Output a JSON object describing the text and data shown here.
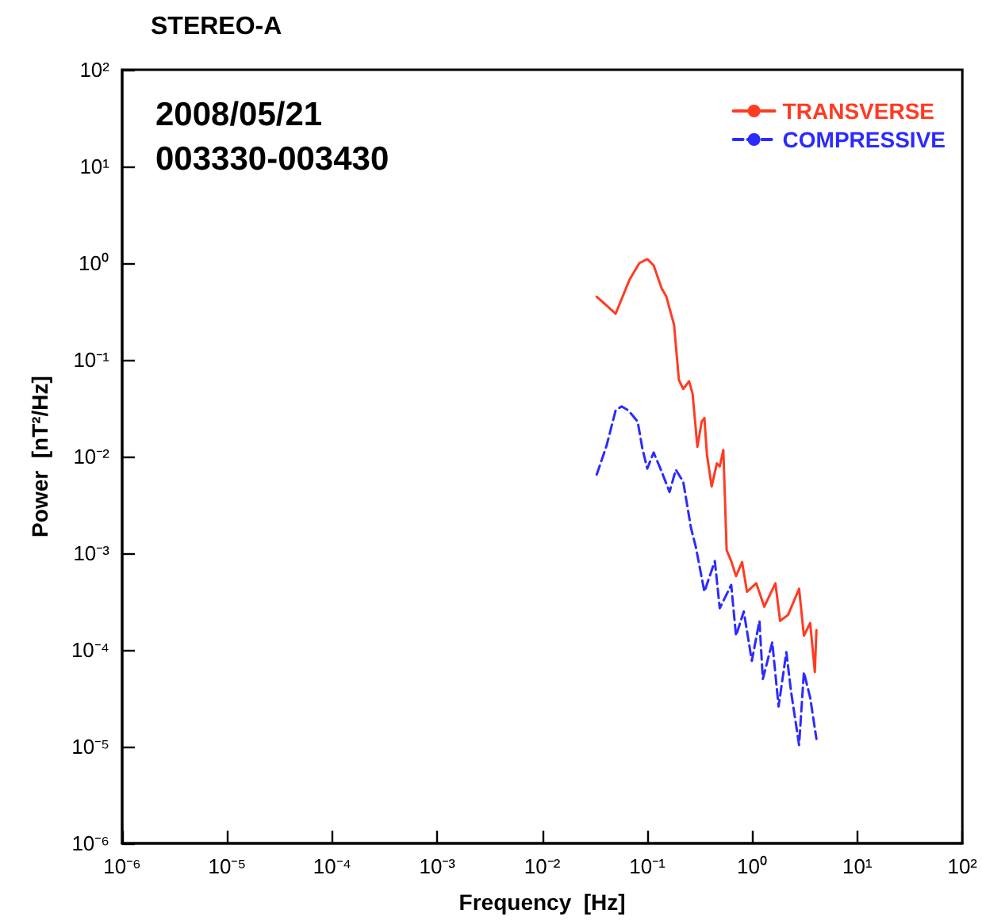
{
  "chart_data": {
    "type": "line",
    "title": "STEREO-A",
    "xlabel": "Frequency  [Hz]",
    "ylabel": "Power  [nT²/Hz]",
    "annotations": [
      "2008/05/21",
      "003330-003430"
    ],
    "log": "xy",
    "grid": false,
    "legend": "top right",
    "marker": "none",
    "xlim": [
      1e-06,
      100
    ],
    "ylim": [
      1e-06,
      100
    ],
    "xticks": [
      {
        "value": 1e-06,
        "label": "10⁻⁶"
      },
      {
        "value": 1e-05,
        "label": "10⁻⁵"
      },
      {
        "value": 0.0001,
        "label": "10⁻⁴"
      },
      {
        "value": 0.001,
        "label": "10⁻³"
      },
      {
        "value": 0.01,
        "label": "10⁻²"
      },
      {
        "value": 0.1,
        "label": "10⁻¹"
      },
      {
        "value": 1,
        "label": "10⁰"
      },
      {
        "value": 10,
        "label": "10¹"
      },
      {
        "value": 100,
        "label": "10²"
      }
    ],
    "yticks": [
      {
        "value": 1e-06,
        "label": "10⁻⁶"
      },
      {
        "value": 1e-05,
        "label": "10⁻⁵"
      },
      {
        "value": 0.0001,
        "label": "10⁻⁴"
      },
      {
        "value": 0.001,
        "label": "10⁻³"
      },
      {
        "value": 0.01,
        "label": "10⁻²"
      },
      {
        "value": 0.1,
        "label": "10⁻¹"
      },
      {
        "value": 1,
        "label": "10⁰"
      },
      {
        "value": 10,
        "label": "10¹"
      },
      {
        "value": 100,
        "label": "10²"
      }
    ],
    "series": [
      {
        "name": "TRANSVERSE",
        "color": "#ff3b22",
        "line_style": "solid",
        "x": [
          0.033,
          0.05,
          0.068,
          0.084,
          0.1,
          0.115,
          0.137,
          0.152,
          0.18,
          0.2,
          0.22,
          0.25,
          0.27,
          0.3,
          0.33,
          0.35,
          0.37,
          0.41,
          0.46,
          0.49,
          0.53,
          0.57,
          0.63,
          0.7,
          0.8,
          0.89,
          1.09,
          1.3,
          1.66,
          1.84,
          2.19,
          2.79,
          3.1,
          3.56,
          3.94,
          4.08
        ],
        "values": [
          0.45,
          0.3,
          0.68,
          1.0,
          1.1,
          0.95,
          0.55,
          0.45,
          0.23,
          0.062,
          0.05,
          0.06,
          0.045,
          0.0126,
          0.023,
          0.025,
          0.0105,
          0.0049,
          0.0085,
          0.0079,
          0.0117,
          0.00107,
          0.00083,
          0.00058,
          0.00081,
          0.0004,
          0.00049,
          0.00028,
          0.00049,
          0.0002,
          0.00023,
          0.00043,
          0.00014,
          0.00019,
          5.9e-05,
          0.00016
        ]
      },
      {
        "name": "COMPRESSIVE",
        "color": "#2b2bff",
        "line_style": "dashed",
        "x": [
          0.033,
          0.041,
          0.05,
          0.057,
          0.066,
          0.081,
          0.09,
          0.1,
          0.115,
          0.137,
          0.163,
          0.187,
          0.22,
          0.25,
          0.26,
          0.29,
          0.35,
          0.44,
          0.49,
          0.63,
          0.7,
          0.83,
          0.99,
          1.17,
          1.26,
          1.55,
          1.78,
          2.11,
          2.34,
          2.79,
          3.1,
          3.56,
          4.08
        ],
        "values": [
          0.0065,
          0.013,
          0.03,
          0.033,
          0.03,
          0.023,
          0.012,
          0.0075,
          0.011,
          0.007,
          0.0043,
          0.0073,
          0.0055,
          0.0024,
          0.00185,
          0.00116,
          0.0004,
          0.00083,
          0.00027,
          0.00047,
          0.00014,
          0.00025,
          7.7e-05,
          0.0002,
          5e-05,
          0.00012,
          2.6e-05,
          9.5e-05,
          3.7e-05,
          1.04e-05,
          5.9e-05,
          3.2e-05,
          1.2e-05
        ]
      }
    ]
  }
}
